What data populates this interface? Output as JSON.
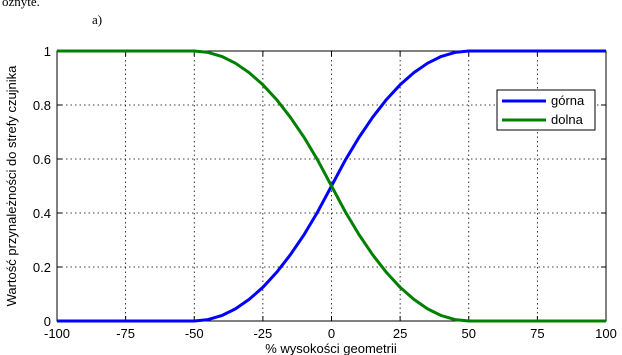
{
  "page": {
    "top_fragment": "oznyte.",
    "panel_label": "a)"
  },
  "chart_data": {
    "type": "line",
    "xlabel": "% wysokości geometrii",
    "ylabel": "Wartość przynależności do strefy czujnika",
    "xlim": [
      -100,
      100
    ],
    "ylim": [
      0,
      1
    ],
    "x_ticks": [
      -100,
      -75,
      -50,
      -25,
      0,
      25,
      50,
      75,
      100
    ],
    "x_tick_labels": [
      "-100",
      "-75",
      "-50",
      "-25",
      "0",
      "25",
      "50",
      "75",
      "100"
    ],
    "y_ticks": [
      0,
      0.2,
      0.4,
      0.6,
      0.8,
      1
    ],
    "y_tick_labels": [
      "0",
      "0.2",
      "0.4",
      "0.6",
      "0.8",
      "1"
    ],
    "grid": true,
    "legend_position": "top-right",
    "x": [
      -100,
      -90,
      -80,
      -70,
      -60,
      -50,
      -45,
      -40,
      -35,
      -30,
      -25,
      -20,
      -15,
      -10,
      -5,
      0,
      5,
      10,
      15,
      20,
      25,
      30,
      35,
      40,
      45,
      50,
      60,
      70,
      80,
      90,
      100
    ],
    "series": [
      {
        "name": "górna",
        "color": "#0000ff",
        "values": [
          0,
          0,
          0,
          0,
          0,
          0,
          0.005,
          0.02,
          0.045,
          0.08,
          0.125,
          0.18,
          0.245,
          0.32,
          0.405,
          0.5,
          0.595,
          0.68,
          0.755,
          0.82,
          0.875,
          0.92,
          0.955,
          0.98,
          0.995,
          1,
          1,
          1,
          1,
          1,
          1
        ]
      },
      {
        "name": "dolna",
        "color": "#008000",
        "values": [
          1,
          1,
          1,
          1,
          1,
          1,
          0.995,
          0.98,
          0.955,
          0.92,
          0.875,
          0.82,
          0.755,
          0.68,
          0.595,
          0.5,
          0.405,
          0.32,
          0.245,
          0.18,
          0.125,
          0.08,
          0.045,
          0.02,
          0.005,
          0,
          0,
          0,
          0,
          0,
          0
        ]
      }
    ]
  }
}
